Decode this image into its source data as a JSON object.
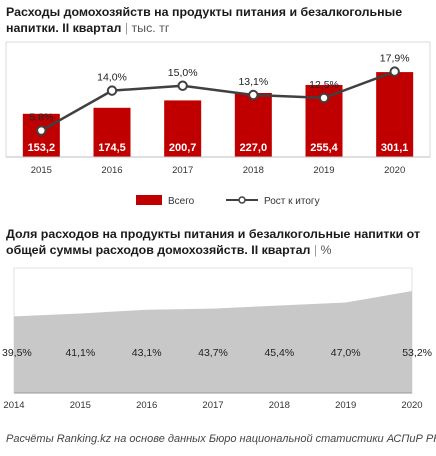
{
  "chart_data": [
    {
      "type": "bar",
      "title": "Расходы домохозяйств на продукты питания и безалкогольные напитки. II квартал",
      "unit": "тыс. тг",
      "categories": [
        "2015",
        "2016",
        "2017",
        "2018",
        "2019",
        "2020"
      ],
      "series": [
        {
          "name": "Всего",
          "type": "bar",
          "values": [
            153.2,
            174.5,
            200.7,
            227.0,
            255.4,
            301.1
          ],
          "labels": [
            "153,2",
            "174,5",
            "200,7",
            "227,0",
            "255,4",
            "301,1"
          ]
        },
        {
          "name": "Рост к итогу",
          "type": "line",
          "values": [
            5.8,
            14.0,
            15.0,
            13.1,
            12.5,
            17.9
          ],
          "labels": [
            "5,8%",
            "14,0%",
            "15,0%",
            "13,1%",
            "12,5%",
            "17,9%"
          ]
        }
      ],
      "colors": {
        "bar": "#c00000",
        "line": "#404040"
      },
      "legend_position": "bottom",
      "grid": false
    },
    {
      "type": "area",
      "title": "Доля расходов на продукты питания и безалкогольные напитки от общей суммы расходов домохозяйств. II квартал",
      "unit": "%",
      "categories": [
        "2014",
        "2015",
        "2016",
        "2017",
        "2018",
        "2019",
        "2020"
      ],
      "values": [
        39.5,
        41.1,
        43.1,
        43.7,
        45.4,
        47.0,
        53.2
      ],
      "labels": [
        "39,5%",
        "41,1%",
        "43,1%",
        "43,7%",
        "45,4%",
        "47,0%",
        "53,2%"
      ],
      "colors": {
        "area": "#c8c8c8"
      },
      "grid": false
    }
  ],
  "footer": "Расчёты Ranking.kz на основе данных Бюро национальной статистики АСПиР РК"
}
